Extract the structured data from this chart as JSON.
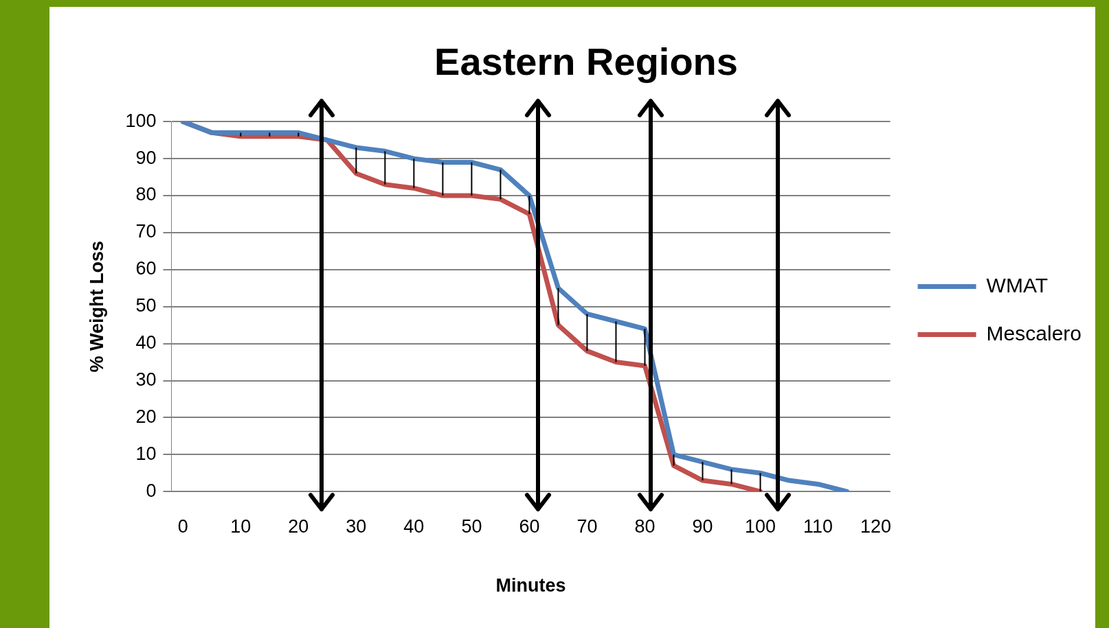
{
  "chart_data": {
    "type": "line",
    "title": "Eastern Regions",
    "xlabel": "Minutes",
    "ylabel": "% Weight Loss",
    "x": [
      0,
      5,
      10,
      15,
      20,
      25,
      30,
      35,
      40,
      45,
      50,
      55,
      60,
      65,
      70,
      75,
      80,
      85,
      90,
      95,
      100,
      105,
      110,
      115
    ],
    "series": [
      {
        "name": "WMAT",
        "color": "#4f81bd",
        "values": [
          100,
          97,
          97,
          97,
          97,
          95,
          93,
          92,
          90,
          89,
          89,
          87,
          80,
          55,
          48,
          46,
          44,
          10,
          8,
          6,
          5,
          3,
          2,
          0
        ],
        "errors": [
          null,
          [
            97,
            97
          ],
          [
            96,
            97
          ],
          [
            96,
            97
          ],
          [
            96,
            97
          ],
          null,
          [
            86,
            93
          ],
          [
            83,
            92
          ],
          [
            82,
            90
          ],
          [
            80,
            89
          ],
          [
            80,
            89
          ],
          [
            79,
            87
          ],
          [
            75,
            80
          ],
          [
            45,
            55
          ],
          [
            38,
            48
          ],
          [
            35,
            46
          ],
          [
            34,
            44
          ],
          [
            7,
            10
          ],
          [
            3,
            8
          ],
          [
            2,
            6
          ],
          [
            0,
            5
          ],
          null,
          null,
          null
        ]
      },
      {
        "name": "Mescalero",
        "color": "#c0504d",
        "values": [
          100,
          97,
          96,
          96,
          96,
          95,
          86,
          83,
          82,
          80,
          80,
          79,
          75,
          45,
          38,
          35,
          34,
          7,
          3,
          2,
          0,
          null,
          null,
          null
        ]
      }
    ],
    "xlim": [
      -2,
      122.5
    ],
    "xticks": [
      0,
      10,
      20,
      30,
      40,
      50,
      60,
      70,
      80,
      90,
      100,
      110,
      120
    ],
    "ylim": [
      0,
      100
    ],
    "yticks": [
      0,
      10,
      20,
      30,
      40,
      50,
      60,
      70,
      80,
      90,
      100
    ],
    "grid": "y",
    "legend": "right",
    "marker": "none",
    "line_style": "solid",
    "ref_lines": [
      {
        "axis": "x",
        "value": 24,
        "label": null,
        "color": "#000000"
      },
      {
        "axis": "x",
        "value": 61.5,
        "label": null,
        "color": "#000000"
      },
      {
        "axis": "x",
        "value": 81,
        "label": null,
        "color": "#000000"
      },
      {
        "axis": "x",
        "value": 103,
        "label": null,
        "color": "#000000"
      }
    ]
  }
}
